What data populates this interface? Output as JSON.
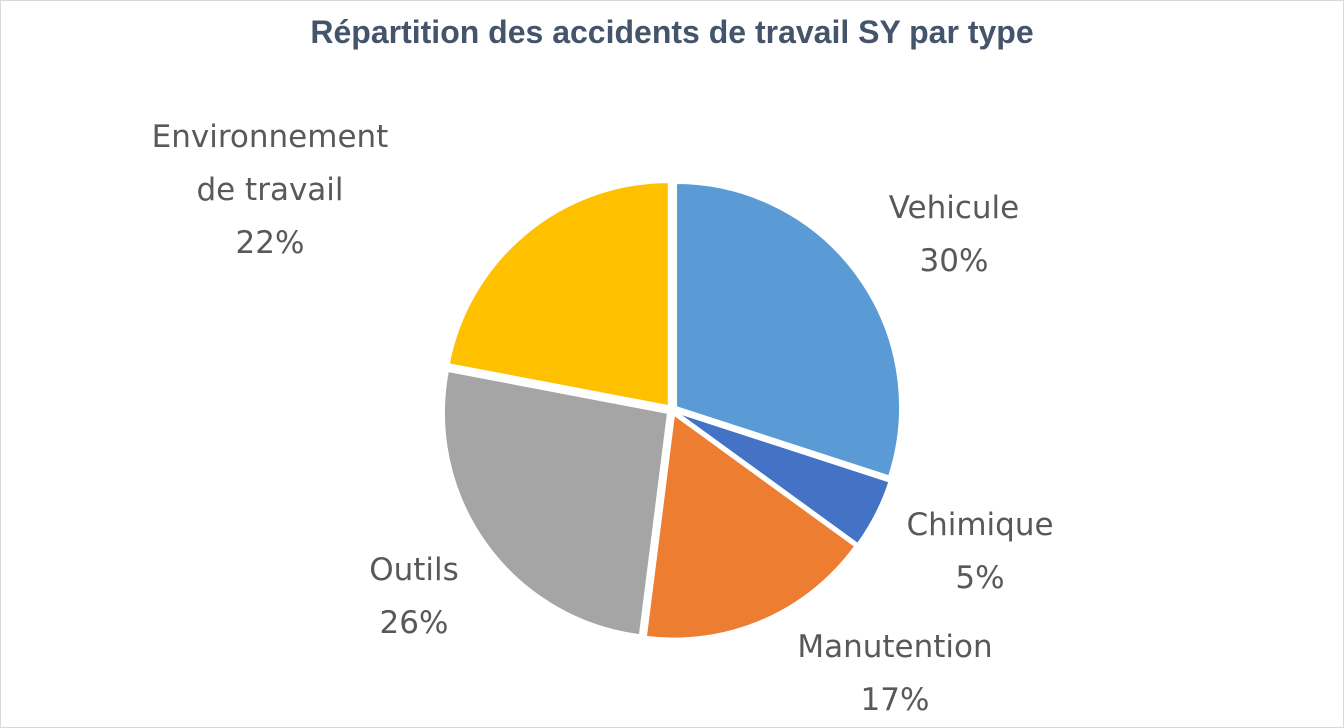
{
  "chart_data": {
    "type": "pie",
    "title": "Répartition des accidents de travail SY par type",
    "slices": [
      {
        "label_lines": [
          "Vehicule"
        ],
        "percent_label": "30%",
        "value": 30,
        "color": "#5b9bd5"
      },
      {
        "label_lines": [
          "Chimique"
        ],
        "percent_label": "5%",
        "value": 5,
        "color": "#4472c4"
      },
      {
        "label_lines": [
          "Manutention"
        ],
        "percent_label": "17%",
        "value": 17,
        "color": "#ed7d31"
      },
      {
        "label_lines": [
          "Outils"
        ],
        "percent_label": "26%",
        "value": 26,
        "color": "#a5a5a5"
      },
      {
        "label_lines": [
          "Environnement",
          "de travail"
        ],
        "percent_label": "22%",
        "value": 22,
        "color": "#ffc000"
      }
    ],
    "legend": "none"
  }
}
